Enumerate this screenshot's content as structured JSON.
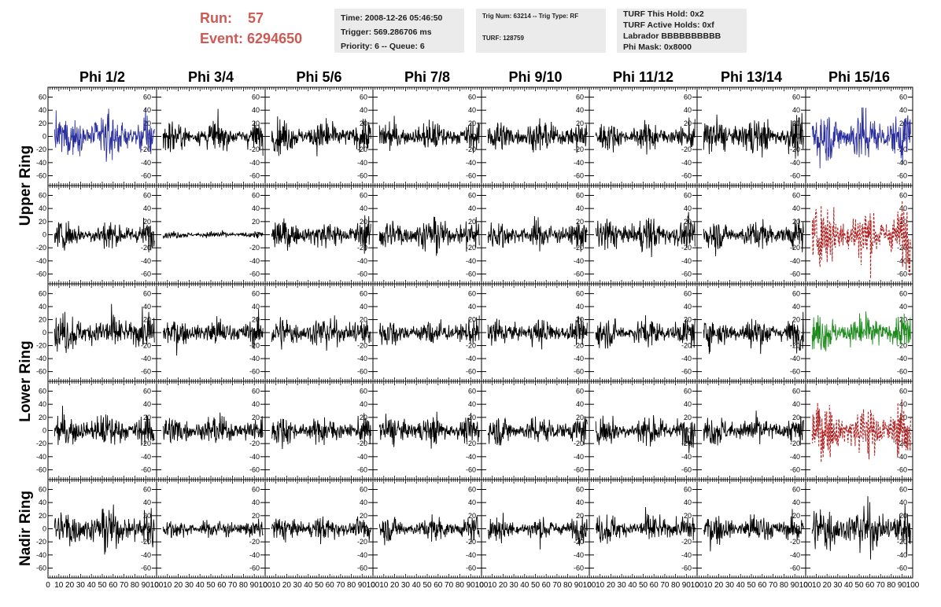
{
  "header": {
    "run_label": "Run:",
    "run_value": "57",
    "event_label": "Event:",
    "event_value": "6294650",
    "accent_color": "#cc5a55"
  },
  "info_time": {
    "time": "Time: 2008-12-26 05:46:50",
    "trigger": "Trigger: 569.286706 ms",
    "priority": "Priority: 6 -- Queue: 6"
  },
  "info_trig": {
    "trig": "Trig Num: 63214 -- Trig Type: RF",
    "turf": "TURF: 128759"
  },
  "info_turf": {
    "hold": "TURF This Hold: 0x2",
    "active": "TURF Active Holds: 0xf",
    "labrador": "Labrador BBBBBBBBBB",
    "mask": "Phi Mask: 0x8000"
  },
  "chart_data": {
    "type": "line",
    "columns": [
      "Phi 1/2",
      "Phi 3/4",
      "Phi 5/6",
      "Phi 7/8",
      "Phi 9/10",
      "Phi 11/12",
      "Phi 13/14",
      "Phi 15/16"
    ],
    "rows": [
      "Upper Ring",
      "Lower Ring",
      "Nadir Ring"
    ],
    "xlim": [
      0,
      100
    ],
    "ylim": [
      -75,
      75
    ],
    "x_ticks": [
      0,
      10,
      20,
      30,
      40,
      50,
      60,
      70,
      80,
      90,
      100
    ],
    "x_tick_labels": [
      "0",
      "10",
      "20",
      "30",
      "40",
      "50",
      "60",
      "70",
      "80",
      "90",
      "100"
    ],
    "y_ticks": [
      -60,
      -40,
      -20,
      0,
      20,
      40,
      60
    ],
    "y_tick_labels": [
      "-60",
      "-40",
      "-20",
      "0",
      "20",
      "40",
      "60"
    ],
    "panel_rows": [
      {
        "amplitudes": [
          18,
          12,
          13,
          12,
          13,
          11,
          15,
          22
        ],
        "colors": [
          "#2b2f9e",
          "#000000",
          "#000000",
          "#000000",
          "#000000",
          "#000000",
          "#000000",
          "#2b2f9e"
        ],
        "dashed": [
          false,
          false,
          false,
          false,
          false,
          false,
          false,
          false
        ]
      },
      {
        "amplitudes": [
          12,
          3,
          12,
          14,
          12,
          14,
          12,
          24
        ],
        "colors": [
          "#000000",
          "#000000",
          "#000000",
          "#000000",
          "#000000",
          "#000000",
          "#000000",
          "#b22222"
        ],
        "dashed": [
          false,
          false,
          false,
          false,
          false,
          false,
          false,
          true
        ]
      },
      {
        "amplitudes": [
          16,
          12,
          14,
          11,
          11,
          12,
          13,
          15
        ],
        "colors": [
          "#000000",
          "#000000",
          "#000000",
          "#000000",
          "#000000",
          "#000000",
          "#000000",
          "#1e8a1e"
        ],
        "dashed": [
          false,
          false,
          false,
          false,
          false,
          false,
          false,
          false
        ]
      },
      {
        "amplitudes": [
          14,
          12,
          11,
          12,
          12,
          13,
          12,
          22
        ],
        "colors": [
          "#000000",
          "#000000",
          "#000000",
          "#000000",
          "#000000",
          "#000000",
          "#000000",
          "#b22222"
        ],
        "dashed": [
          false,
          false,
          false,
          false,
          false,
          false,
          false,
          true
        ]
      },
      {
        "amplitudes": [
          17,
          8,
          10,
          10,
          10,
          12,
          12,
          20
        ],
        "colors": [
          "#000000",
          "#000000",
          "#000000",
          "#000000",
          "#000000",
          "#000000",
          "#000000",
          "#000000"
        ],
        "dashed": [
          false,
          false,
          false,
          false,
          false,
          false,
          false,
          false
        ]
      }
    ],
    "samples_per_trace": 250
  }
}
